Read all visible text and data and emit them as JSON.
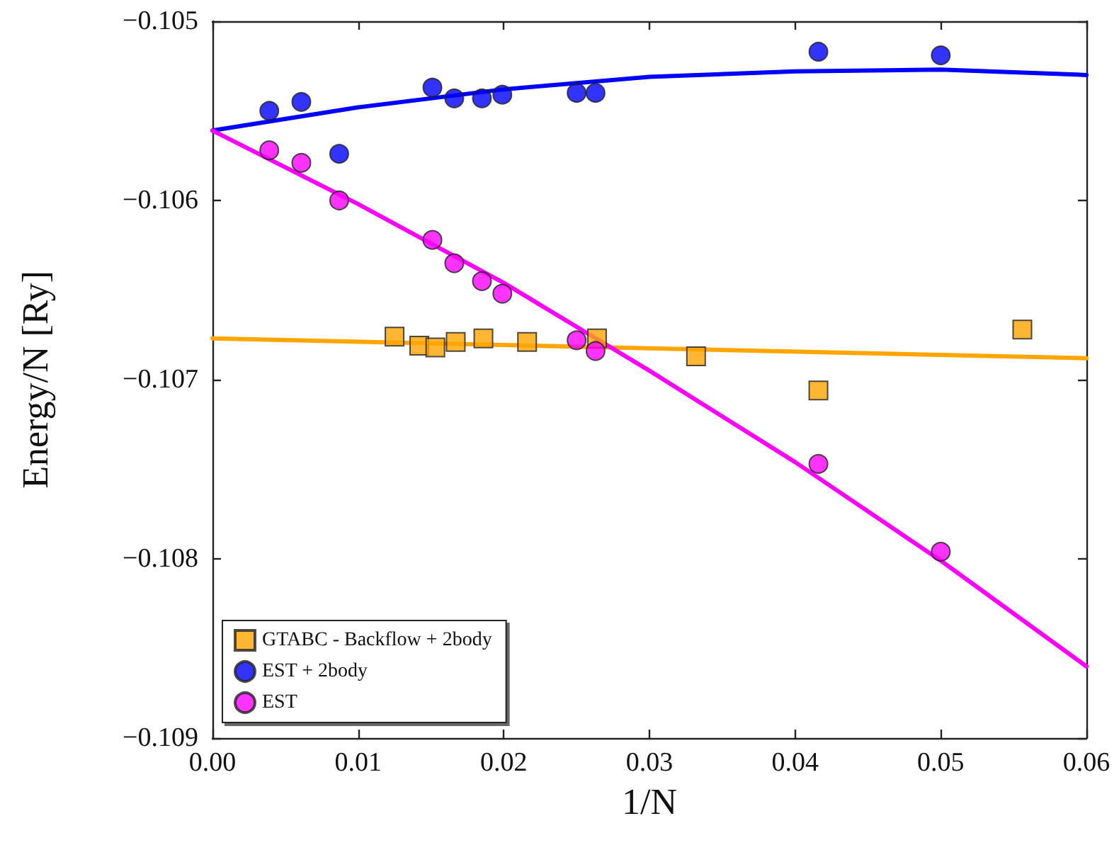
{
  "chart_data": {
    "type": "scatter",
    "xlabel": "1/N",
    "ylabel": "Energy/N [Ry]",
    "xlim": [
      0,
      0.06
    ],
    "ylim": [
      -0.109,
      -0.105
    ],
    "xticks": [
      {
        "value": 0,
        "label": "0.00"
      },
      {
        "value": 0.01,
        "label": "0.01"
      },
      {
        "value": 0.02,
        "label": "0.02"
      },
      {
        "value": 0.03,
        "label": "0.03"
      },
      {
        "value": 0.04,
        "label": "0.04"
      },
      {
        "value": 0.05,
        "label": "0.05"
      },
      {
        "value": 0.06,
        "label": "0.06"
      }
    ],
    "yticks": [
      {
        "value": -0.109,
        "label": "−0.109"
      },
      {
        "value": -0.108,
        "label": "−0.108"
      },
      {
        "value": -0.107,
        "label": "−0.107"
      },
      {
        "value": -0.106,
        "label": "−0.106"
      },
      {
        "value": -0.105,
        "label": "−0.105"
      }
    ],
    "grid": false,
    "legend": "bottom left",
    "series": [
      {
        "name": "GTABC - Backflow + 2body",
        "color": "#ffa500",
        "marker": "square",
        "x": [
          0.0125,
          0.0142,
          0.0153,
          0.0167,
          0.0186,
          0.0216,
          0.0264,
          0.0332,
          0.0416,
          0.0556
        ],
        "values": [
          -0.10676,
          -0.10681,
          -0.10682,
          -0.10679,
          -0.10677,
          -0.10679,
          -0.10677,
          -0.10687,
          -0.10706,
          -0.10672
        ]
      },
      {
        "name": "EST + 2body",
        "color": "#0000ff",
        "marker": "circle",
        "x": [
          0.0039,
          0.0061,
          0.0087,
          0.0151,
          0.0166,
          0.0185,
          0.0199,
          0.025,
          0.0263,
          0.0416,
          0.05
        ],
        "values": [
          -0.1055,
          -0.10545,
          -0.10574,
          -0.10537,
          -0.10543,
          -0.10543,
          -0.10541,
          -0.1054,
          -0.1054,
          -0.10517,
          -0.10519
        ]
      },
      {
        "name": "EST",
        "color": "#ff00ff",
        "marker": "circle",
        "x": [
          0.0039,
          0.0061,
          0.0087,
          0.0151,
          0.0166,
          0.0185,
          0.0199,
          0.025,
          0.0263,
          0.0416,
          0.05
        ],
        "values": [
          -0.10572,
          -0.10579,
          -0.106,
          -0.10622,
          -0.10635,
          -0.10645,
          -0.10652,
          -0.10678,
          -0.10684,
          -0.10747,
          -0.10796
        ]
      },
      {
        "type": "line",
        "color": "#ffa500",
        "marker": "none",
        "line_style": "solid",
        "x": [
          0,
          0.06
        ],
        "values": [
          -0.10677,
          -0.10688
        ]
      },
      {
        "type": "line",
        "color": "#0000ff",
        "marker": "none",
        "line_style": "solid",
        "x": [
          0,
          0.01,
          0.02,
          0.03,
          0.04,
          0.05,
          0.06
        ],
        "values": [
          -0.10561,
          -0.10548,
          -0.10538,
          -0.10531,
          -0.10528,
          -0.10527,
          -0.1053
        ]
      },
      {
        "type": "line",
        "color": "#ff00ff",
        "marker": "none",
        "line_style": "solid",
        "x": [
          0,
          0.01,
          0.02,
          0.03,
          0.04,
          0.05,
          0.06
        ],
        "values": [
          -0.10561,
          -0.10602,
          -0.10646,
          -0.10695,
          -0.10746,
          -0.10801,
          -0.1086
        ]
      }
    ]
  }
}
